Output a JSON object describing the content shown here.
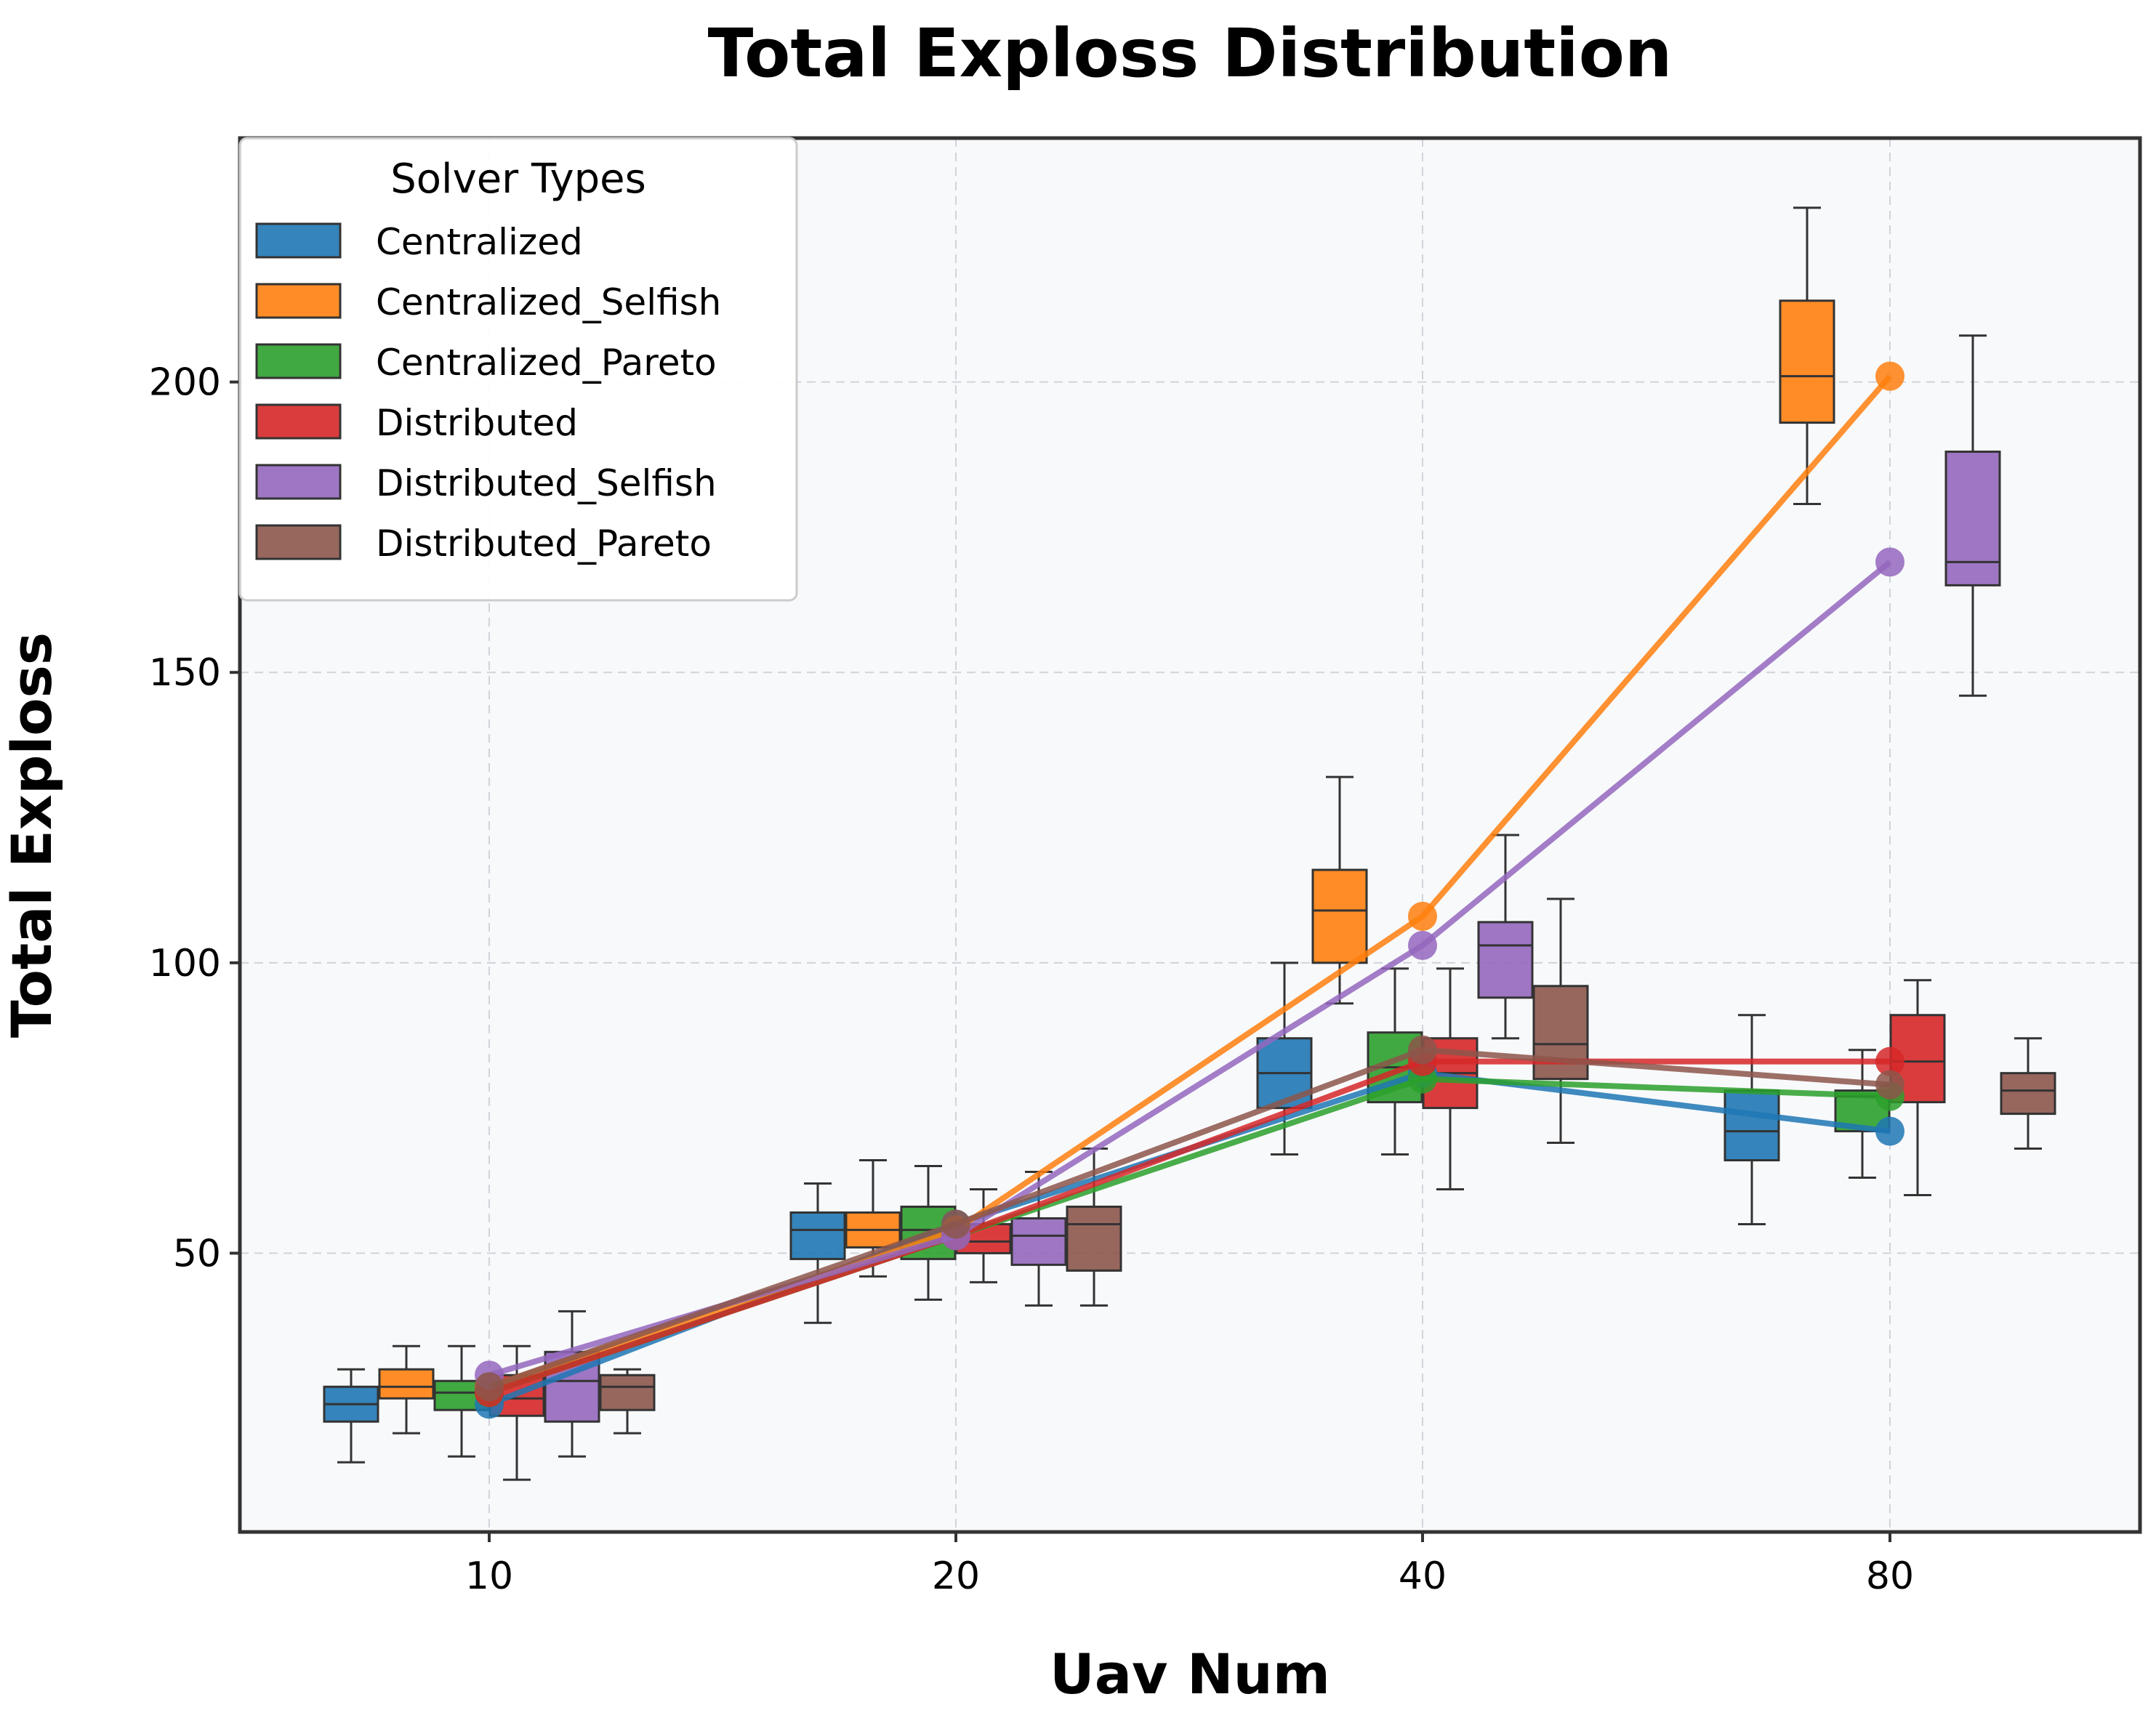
{
  "chart_data": {
    "type": "box",
    "title": "Total Exploss Distribution",
    "xlabel": "Uav Num",
    "ylabel": "Total Exploss",
    "categories": [
      "10",
      "20",
      "40",
      "80"
    ],
    "ylim": [
      2,
      242
    ],
    "yticks": [
      50,
      100,
      150,
      200
    ],
    "grid": true,
    "legend": {
      "title": "Solver Types",
      "placement": "top-left"
    },
    "series": [
      {
        "name": "Centralized",
        "color": "#1f77b4",
        "boxes": [
          {
            "min": 14,
            "q1": 21,
            "median": 24,
            "q3": 27,
            "max": 30
          },
          {
            "min": 38,
            "q1": 49,
            "median": 54,
            "q3": 57,
            "max": 62
          },
          {
            "min": 67,
            "q1": 75,
            "median": 81,
            "q3": 87,
            "max": 100
          },
          {
            "min": 55,
            "q1": 66,
            "median": 71,
            "q3": 78,
            "max": 91
          }
        ],
        "means": [
          24,
          55,
          81,
          71
        ]
      },
      {
        "name": "Centralized_Selfish",
        "color": "#ff7f0e",
        "boxes": [
          {
            "min": 19,
            "q1": 25,
            "median": 27,
            "q3": 30,
            "max": 34
          },
          {
            "min": 46,
            "q1": 51,
            "median": 54,
            "q3": 57,
            "max": 66
          },
          {
            "min": 93,
            "q1": 100,
            "median": 109,
            "q3": 116,
            "max": 132
          },
          {
            "min": 179,
            "q1": 193,
            "median": 201,
            "q3": 214,
            "max": 230
          }
        ],
        "means": [
          27,
          54,
          108,
          201
        ]
      },
      {
        "name": "Centralized_Pareto",
        "color": "#2ca02c",
        "boxes": [
          {
            "min": 15,
            "q1": 23,
            "median": 26,
            "q3": 28,
            "max": 34
          },
          {
            "min": 42,
            "q1": 49,
            "median": 54,
            "q3": 58,
            "max": 65
          },
          {
            "min": 67,
            "q1": 76,
            "median": 82,
            "q3": 88,
            "max": 99
          },
          {
            "min": 63,
            "q1": 71,
            "median": 77,
            "q3": 78,
            "max": 85
          }
        ],
        "means": [
          26,
          53,
          80,
          77
        ]
      },
      {
        "name": "Distributed",
        "color": "#d62728",
        "boxes": [
          {
            "min": 11,
            "q1": 22,
            "median": 25,
            "q3": 29,
            "max": 34
          },
          {
            "min": 45,
            "q1": 50,
            "median": 52,
            "q3": 55,
            "max": 61
          },
          {
            "min": 61,
            "q1": 75,
            "median": 81,
            "q3": 87,
            "max": 99
          },
          {
            "min": 60,
            "q1": 76,
            "median": 83,
            "q3": 91,
            "max": 97
          }
        ],
        "means": [
          26,
          53,
          83,
          83
        ]
      },
      {
        "name": "Distributed_Selfish",
        "color": "#9467bd",
        "boxes": [
          {
            "min": 15,
            "q1": 21,
            "median": 28,
            "q3": 33,
            "max": 40
          },
          {
            "min": 41,
            "q1": 48,
            "median": 53,
            "q3": 56,
            "max": 64
          },
          {
            "min": 87,
            "q1": 94,
            "median": 103,
            "q3": 107,
            "max": 122
          },
          {
            "min": 146,
            "q1": 165,
            "median": 169,
            "q3": 188,
            "max": 208
          }
        ],
        "means": [
          29,
          53,
          103,
          169
        ]
      },
      {
        "name": "Distributed_Pareto",
        "color": "#8c564b",
        "boxes": [
          {
            "min": 19,
            "q1": 23,
            "median": 27,
            "q3": 29,
            "max": 30
          },
          {
            "min": 41,
            "q1": 47,
            "median": 55,
            "q3": 58,
            "max": 68
          },
          {
            "min": 69,
            "q1": 80,
            "median": 86,
            "q3": 96,
            "max": 111
          },
          {
            "min": 68,
            "q1": 74,
            "median": 78,
            "q3": 81,
            "max": 87
          }
        ],
        "means": [
          27,
          55,
          85,
          79
        ]
      }
    ]
  }
}
